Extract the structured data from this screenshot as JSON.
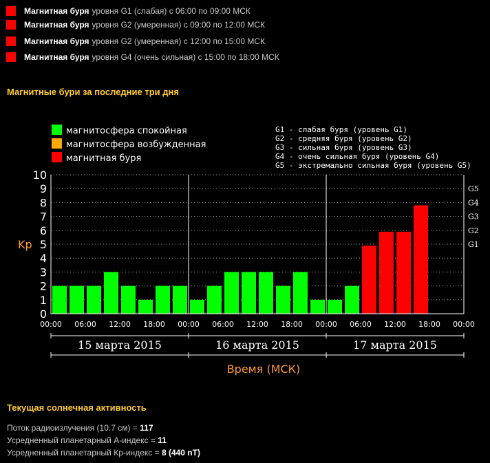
{
  "alerts": [
    {
      "bold": "Магнитная буря",
      "rest": "уровня  G1 (слабая) с 06:00 по 09:00 МСК"
    },
    {
      "bold": "Магнитная буря",
      "rest": "уровня  G2 (умеренная) с 09:00 по 12:00 МСК"
    },
    {
      "bold": "Магнитная буря",
      "rest": "уровня  G2 (умеренная) с 12:00 по 15:00 МСК"
    },
    {
      "bold": "Магнитная буря",
      "rest": "уровня  G4 (очень сильная) с 15:00 по 18:00 МСК"
    }
  ],
  "storms_title": "Магнитные бури за последние три дня",
  "colors": {
    "quiet": "#00ff00",
    "excited": "#ffaa00",
    "storm": "#ff0000",
    "accent": "#ffcc33",
    "axis_title": "#ff9933"
  },
  "chart_data": {
    "type": "bar",
    "title": "",
    "ylabel": "Kp",
    "xlabel": "Время (МСК)",
    "ylim": [
      0,
      10
    ],
    "yticks": [
      "0",
      "1",
      "2",
      "3",
      "4",
      "5",
      "6",
      "7",
      "8",
      "9",
      "10"
    ],
    "g_levels": [
      {
        "label": "G1",
        "kp": 5
      },
      {
        "label": "G2",
        "kp": 6
      },
      {
        "label": "G3",
        "kp": 7
      },
      {
        "label": "G4",
        "kp": 8
      },
      {
        "label": "G5",
        "kp": 9
      }
    ],
    "legend": [
      {
        "label": "магнитосфера спокойная",
        "color": "#00ff00"
      },
      {
        "label": "магнитосфера возбужденная",
        "color": "#ffaa00"
      },
      {
        "label": "магнитная буря",
        "color": "#ff0000"
      }
    ],
    "g_legend": [
      "G1 - слабая буря (уровень G1)",
      "G2 - средняя буря (уровень G2)",
      "G3 - сильная буря (уровень G3)",
      "G4 - очень сильная буря (уровень G4)",
      "G5 - экстремально сильная буря (уровень G5)"
    ],
    "xtick_labels": [
      "00:00",
      "06:00",
      "12:00",
      "18:00",
      "00:00",
      "06:00",
      "12:00",
      "18:00",
      "00:00",
      "06:00",
      "12:00",
      "18:00",
      "00:00"
    ],
    "days": [
      "15 марта 2015",
      "16 марта 2015",
      "17 марта 2015"
    ],
    "bars_per_day": 8,
    "values": [
      2,
      2,
      2,
      3,
      2,
      1,
      2,
      2,
      1,
      2,
      3,
      3,
      3,
      2,
      3,
      1,
      1,
      2,
      4.9,
      5.9,
      5.9,
      7.8
    ],
    "status": [
      "quiet",
      "quiet",
      "quiet",
      "quiet",
      "quiet",
      "quiet",
      "quiet",
      "quiet",
      "quiet",
      "quiet",
      "quiet",
      "quiet",
      "quiet",
      "quiet",
      "quiet",
      "quiet",
      "quiet",
      "quiet",
      "storm",
      "storm",
      "storm",
      "storm"
    ]
  },
  "solar": {
    "title": "Текущая солнечная активность",
    "lines": [
      {
        "label": "Поток радиоизлучения (10.7 см) = ",
        "value": "117"
      },
      {
        "label": "Усредненный планетарный А-индекс = ",
        "value": "11"
      },
      {
        "label": "Усредненный планетарный Кр-индекс = ",
        "value": "8 (440 nT)"
      }
    ]
  }
}
